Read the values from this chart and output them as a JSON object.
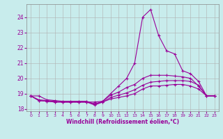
{
  "xlabel": "Windchill (Refroidissement éolien,°C)",
  "xlim": [
    -0.5,
    23.5
  ],
  "ylim": [
    17.85,
    24.85
  ],
  "yticks": [
    18,
    19,
    20,
    21,
    22,
    23,
    24
  ],
  "xticks": [
    0,
    1,
    2,
    3,
    4,
    5,
    6,
    7,
    8,
    9,
    10,
    11,
    12,
    13,
    14,
    15,
    16,
    17,
    18,
    19,
    20,
    21,
    22,
    23
  ],
  "bg_color": "#c8ecec",
  "line_color": "#990099",
  "grid_color": "#b0b0b0",
  "lines": [
    {
      "x": [
        0,
        1,
        2,
        3,
        4,
        5,
        6,
        7,
        8,
        9,
        10,
        11,
        12,
        13,
        14,
        15,
        16,
        17,
        18,
        19,
        20,
        21,
        22,
        23
      ],
      "y": [
        18.85,
        18.85,
        18.6,
        18.55,
        18.5,
        18.5,
        18.5,
        18.5,
        18.3,
        18.5,
        19.0,
        19.5,
        20.0,
        21.0,
        24.0,
        24.5,
        22.8,
        21.8,
        21.6,
        20.5,
        20.3,
        19.8,
        18.85,
        18.85
      ]
    },
    {
      "x": [
        0,
        1,
        2,
        3,
        4,
        5,
        6,
        7,
        8,
        9,
        10,
        11,
        12,
        13,
        14,
        15,
        16,
        17,
        18,
        19,
        20,
        21,
        22,
        23
      ],
      "y": [
        18.85,
        18.6,
        18.55,
        18.5,
        18.45,
        18.45,
        18.45,
        18.45,
        18.45,
        18.5,
        18.9,
        19.1,
        19.4,
        19.6,
        20.0,
        20.2,
        20.2,
        20.2,
        20.15,
        20.1,
        20.0,
        19.5,
        18.85,
        18.85
      ]
    },
    {
      "x": [
        0,
        1,
        2,
        3,
        4,
        5,
        6,
        7,
        8,
        9,
        10,
        11,
        12,
        13,
        14,
        15,
        16,
        17,
        18,
        19,
        20,
        21,
        22,
        23
      ],
      "y": [
        18.85,
        18.55,
        18.5,
        18.45,
        18.45,
        18.45,
        18.45,
        18.45,
        18.35,
        18.45,
        18.75,
        18.9,
        19.05,
        19.25,
        19.55,
        19.75,
        19.8,
        19.85,
        19.85,
        19.85,
        19.8,
        19.55,
        18.85,
        18.85
      ]
    },
    {
      "x": [
        0,
        1,
        2,
        3,
        4,
        5,
        6,
        7,
        8,
        9,
        10,
        11,
        12,
        13,
        14,
        15,
        16,
        17,
        18,
        19,
        20,
        21,
        22,
        23
      ],
      "y": [
        18.85,
        18.55,
        18.5,
        18.45,
        18.45,
        18.45,
        18.45,
        18.45,
        18.25,
        18.45,
        18.65,
        18.75,
        18.85,
        19.0,
        19.3,
        19.5,
        19.5,
        19.55,
        19.6,
        19.6,
        19.5,
        19.3,
        18.85,
        18.85
      ]
    }
  ]
}
